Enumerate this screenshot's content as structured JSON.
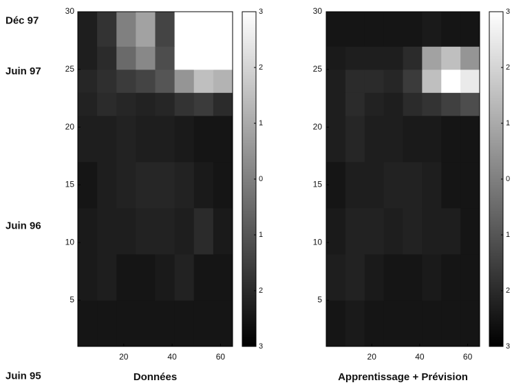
{
  "chart_data": [
    {
      "type": "heatmap",
      "xlabel": "Données",
      "colormap": "gray",
      "xlim": [
        1,
        65
      ],
      "ylim": [
        1,
        30
      ],
      "xticks": [
        20,
        40,
        60
      ],
      "yticks": [
        5,
        10,
        15,
        20,
        25,
        30
      ],
      "x_edges": [
        1,
        9,
        17,
        25,
        33,
        41,
        49,
        57,
        65
      ],
      "y_edges": [
        1,
        5,
        9,
        13,
        17,
        21,
        23,
        25,
        27,
        30
      ],
      "values": [
        [
          -2.5,
          -2.5,
          -2.5,
          -2.5,
          -2.5,
          -2.5,
          -2.5,
          -2.5
        ],
        [
          -2.4,
          -2.3,
          -2.5,
          -2.5,
          -2.4,
          -2.2,
          -2.5,
          -2.5
        ],
        [
          -2.4,
          -2.3,
          -2.3,
          -2.2,
          -2.2,
          -2.3,
          -2.0,
          -2.4
        ],
        [
          -2.5,
          -2.3,
          -2.2,
          -2.1,
          -2.1,
          -2.2,
          -2.4,
          -2.5
        ],
        [
          -2.3,
          -2.3,
          -2.2,
          -2.3,
          -2.3,
          -2.4,
          -2.5,
          -2.5
        ],
        [
          -2.2,
          -2.0,
          -2.1,
          -2.2,
          -2.1,
          -1.8,
          -1.6,
          -2.0
        ],
        [
          -2.1,
          -1.9,
          -1.6,
          -1.4,
          -1.0,
          0.5,
          1.5,
          1.2
        ],
        [
          -2.3,
          -2.0,
          -0.5,
          0.2,
          -1.2,
          3,
          3,
          3
        ],
        [
          -2.3,
          -1.8,
          0.0,
          0.8,
          -1.4,
          3,
          3,
          3
        ]
      ],
      "clim": [
        -3,
        3
      ],
      "cticks": [
        {
          "value": -3,
          "label": "3"
        },
        {
          "value": -2,
          "label": "2"
        },
        {
          "value": -1,
          "label": "1"
        },
        0,
        1,
        2,
        3
      ],
      "date_labels": [
        {
          "value": 29.2,
          "label": "Déc 97"
        },
        {
          "value": 24.8,
          "label": "Juin 97"
        },
        {
          "value": 11.4,
          "label": "Juin 96"
        },
        {
          "value": -1.6,
          "label": "Juin 95"
        }
      ]
    },
    {
      "type": "heatmap",
      "xlabel": "Apprentissage + Prévision",
      "colormap": "gray",
      "xlim": [
        1,
        65
      ],
      "ylim": [
        1,
        30
      ],
      "xticks": [
        20,
        40,
        60
      ],
      "yticks": [
        5,
        10,
        15,
        20,
        25,
        30
      ],
      "x_edges": [
        1,
        9,
        17,
        25,
        33,
        41,
        49,
        57,
        65
      ],
      "y_edges": [
        1,
        5,
        9,
        13,
        17,
        21,
        23,
        25,
        27,
        30
      ],
      "values": [
        [
          -2.5,
          -2.4,
          -2.5,
          -2.5,
          -2.5,
          -2.5,
          -2.5,
          -2.5
        ],
        [
          -2.3,
          -2.2,
          -2.4,
          -2.5,
          -2.5,
          -2.4,
          -2.5,
          -2.5
        ],
        [
          -2.4,
          -2.2,
          -2.2,
          -2.3,
          -2.2,
          -2.3,
          -2.3,
          -2.5
        ],
        [
          -2.5,
          -2.3,
          -2.3,
          -2.2,
          -2.2,
          -2.3,
          -2.5,
          -2.5
        ],
        [
          -2.3,
          -2.1,
          -2.3,
          -2.3,
          -2.4,
          -2.4,
          -2.5,
          -2.5
        ],
        [
          -2.3,
          -2.0,
          -2.2,
          -2.3,
          -2.0,
          -1.8,
          -1.5,
          -1.2
        ],
        [
          -2.3,
          -2.0,
          -2.0,
          -2.1,
          -1.6,
          1.5,
          3.0,
          2.5
        ],
        [
          -2.4,
          -2.3,
          -2.3,
          -2.3,
          -2.0,
          0.8,
          1.5,
          0.5
        ],
        [
          -2.5,
          -2.5,
          -2.5,
          -2.5,
          -2.5,
          -2.4,
          -2.5,
          -2.5
        ]
      ],
      "clim": [
        -3,
        3
      ],
      "cticks": [
        {
          "value": -3,
          "label": "3"
        },
        {
          "value": -2,
          "label": "2"
        },
        {
          "value": -1,
          "label": "1"
        },
        0,
        1,
        2,
        3
      ]
    }
  ]
}
